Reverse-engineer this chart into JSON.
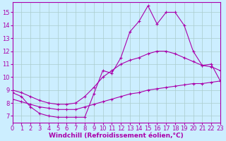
{
  "xlabel": "Windchill (Refroidissement éolien,°C)",
  "bg_color": "#cceeff",
  "line_color": "#aa00aa",
  "grid_color": "#aacccc",
  "line1_x": [
    0,
    1,
    2,
    3,
    4,
    5,
    6,
    7,
    8,
    9,
    10,
    11,
    12,
    13,
    14,
    15,
    16,
    17,
    18,
    19,
    20,
    21,
    22,
    23
  ],
  "line1_y": [
    8.8,
    8.5,
    7.7,
    7.2,
    7.0,
    6.9,
    6.9,
    6.9,
    6.9,
    8.7,
    10.5,
    10.3,
    11.5,
    13.5,
    14.3,
    15.5,
    14.1,
    15.0,
    15.0,
    14.0,
    12.0,
    10.9,
    11.0,
    9.7
  ],
  "line2_x": [
    0,
    1,
    2,
    3,
    4,
    5,
    6,
    7,
    8,
    9,
    10,
    11,
    12,
    13,
    14,
    15,
    16,
    17,
    18,
    19,
    20,
    21,
    22,
    23
  ],
  "line2_y": [
    9.0,
    8.8,
    8.5,
    8.2,
    8.0,
    7.9,
    7.9,
    8.0,
    8.5,
    9.2,
    10.0,
    10.5,
    11.0,
    11.3,
    11.5,
    11.8,
    12.0,
    12.0,
    11.8,
    11.5,
    11.2,
    10.9,
    10.8,
    10.5
  ],
  "line3_x": [
    0,
    1,
    2,
    3,
    4,
    5,
    6,
    7,
    8,
    9,
    10,
    11,
    12,
    13,
    14,
    15,
    16,
    17,
    18,
    19,
    20,
    21,
    22,
    23
  ],
  "line3_y": [
    8.3,
    8.1,
    7.9,
    7.7,
    7.6,
    7.5,
    7.5,
    7.5,
    7.7,
    7.9,
    8.1,
    8.3,
    8.5,
    8.7,
    8.8,
    9.0,
    9.1,
    9.2,
    9.3,
    9.4,
    9.5,
    9.5,
    9.6,
    9.7
  ],
  "xmin": 0,
  "xmax": 23,
  "ymin": 6.5,
  "ymax": 15.8,
  "yticks": [
    7,
    8,
    9,
    10,
    11,
    12,
    13,
    14,
    15
  ],
  "xticks": [
    0,
    1,
    2,
    3,
    4,
    5,
    6,
    7,
    8,
    9,
    10,
    11,
    12,
    13,
    14,
    15,
    16,
    17,
    18,
    19,
    20,
    21,
    22,
    23
  ],
  "xlabel_fontsize": 6.5,
  "tick_fontsize": 6
}
